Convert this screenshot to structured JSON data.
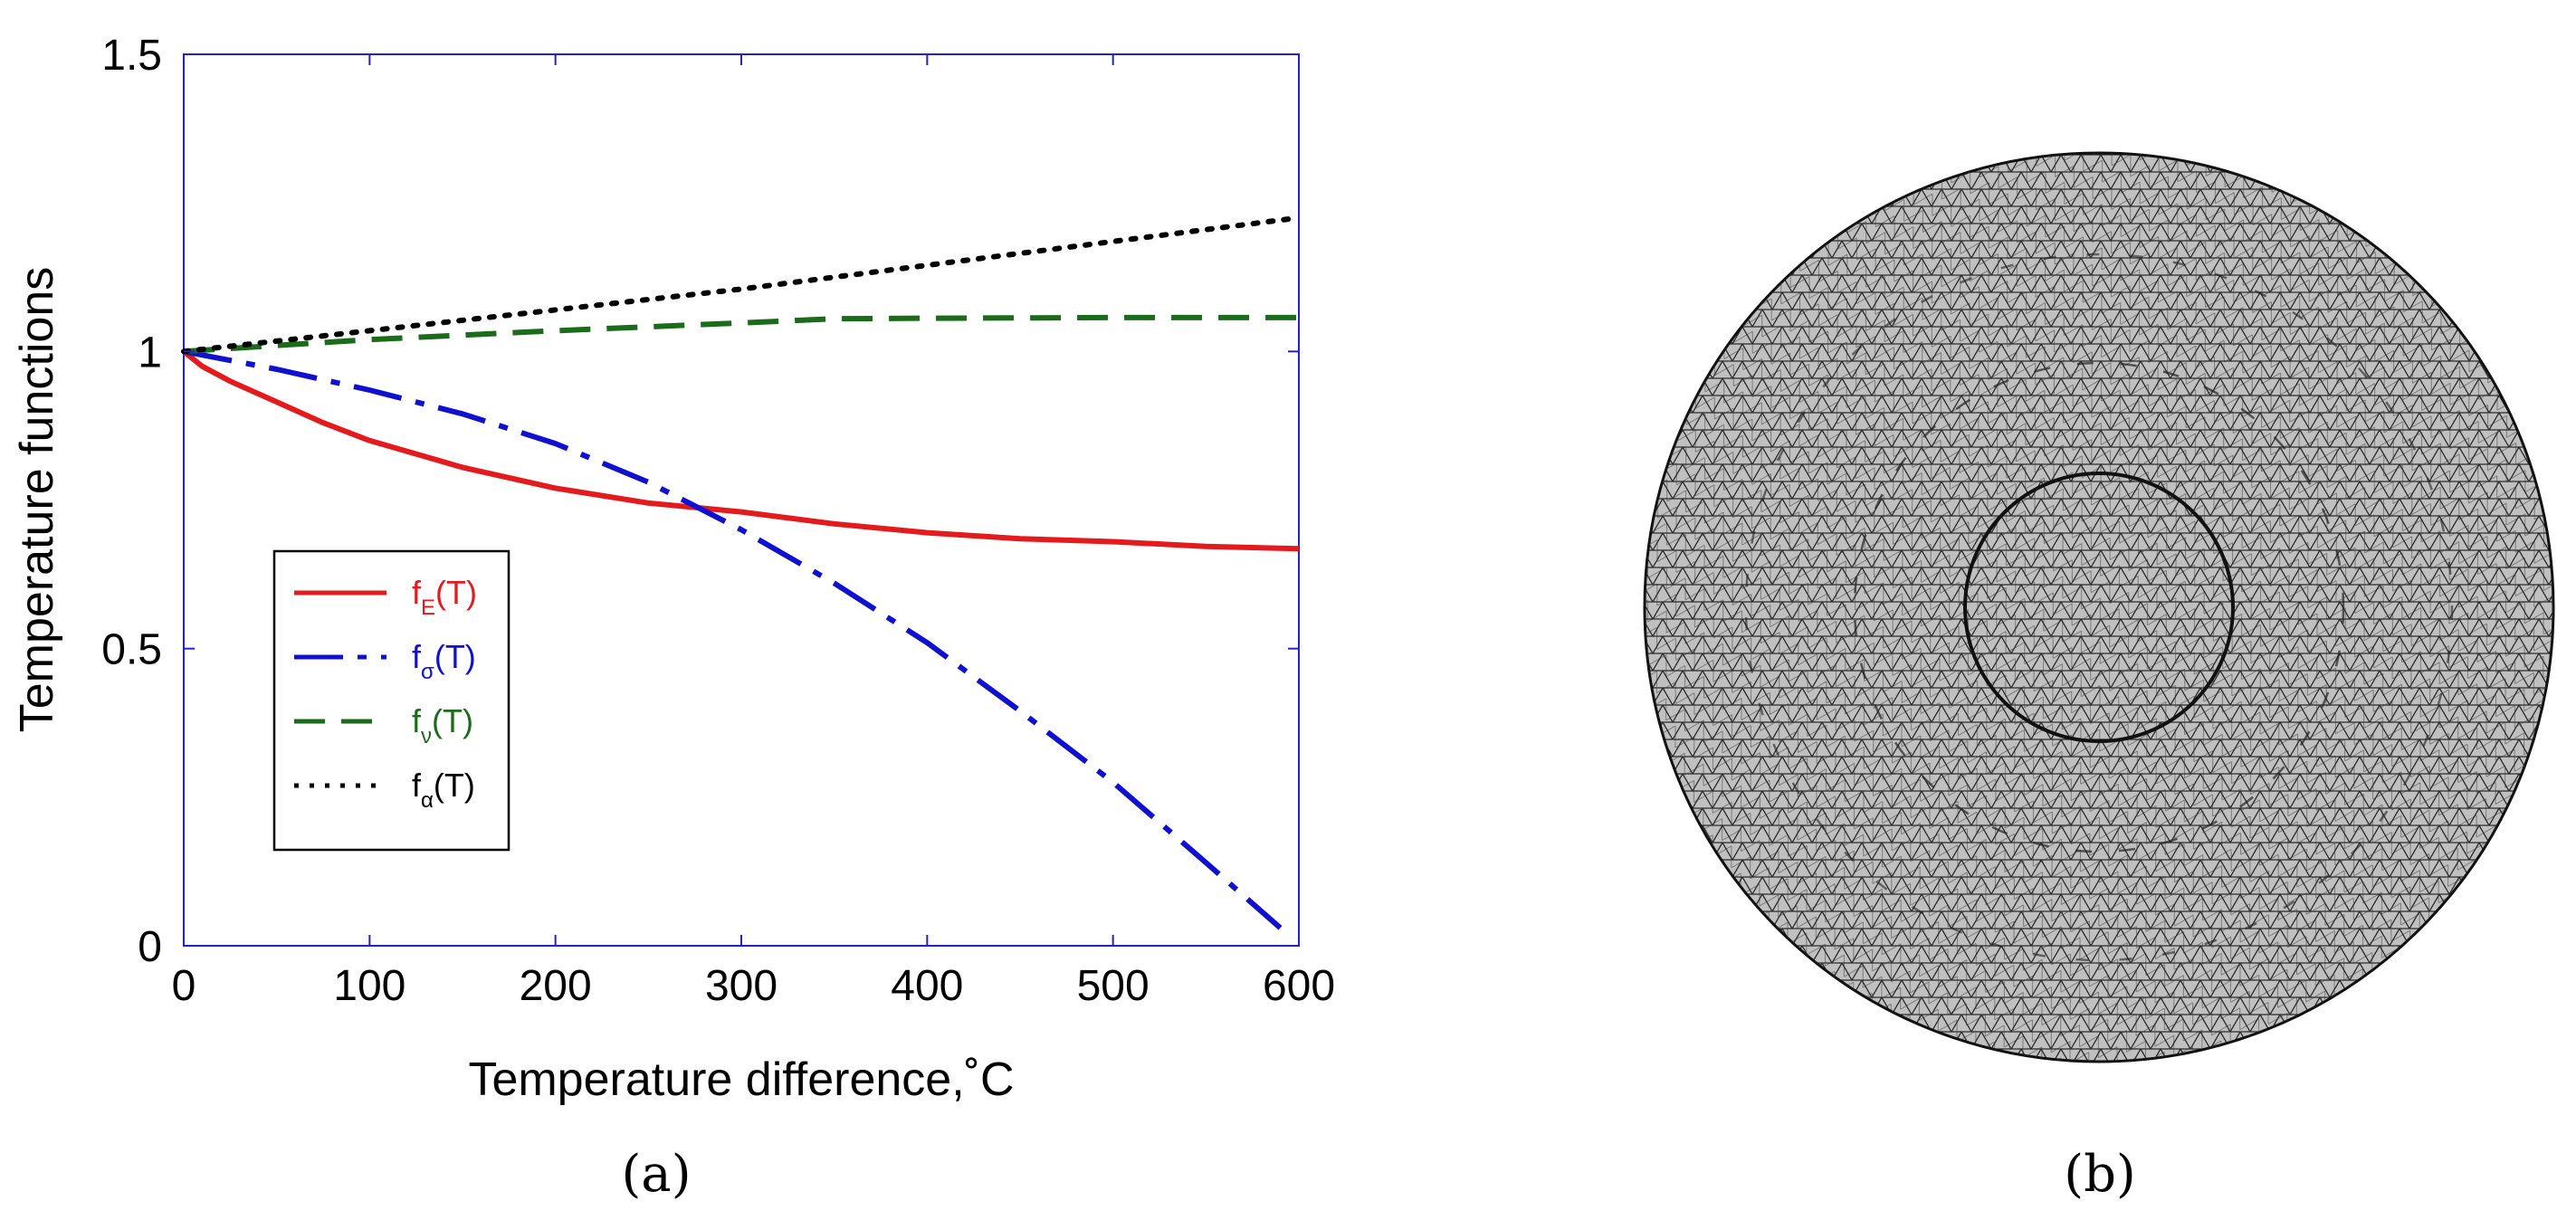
{
  "chart_data": {
    "type": "line",
    "xlabel": "Temperature difference,˚C",
    "ylabel": "Temperature functions",
    "xlim": [
      0,
      600
    ],
    "ylim": [
      0,
      1.5
    ],
    "xticks": [
      0,
      100,
      200,
      300,
      400,
      500,
      600
    ],
    "xtick_labels": [
      "0",
      "100",
      "200",
      "300",
      "400",
      "500",
      "600"
    ],
    "yticks": [
      0,
      0.5,
      1,
      1.5
    ],
    "ytick_labels": [
      "0",
      "0.5",
      "1",
      "1.5"
    ],
    "grid": false,
    "legend_position": "left",
    "series": [
      {
        "key": "fE",
        "name": "f",
        "subscript": "E",
        "suffix": "(T)",
        "color": "#e41a1c",
        "style": "solid",
        "x": [
          0,
          10,
          25,
          50,
          75,
          100,
          150,
          200,
          250,
          300,
          350,
          400,
          450,
          500,
          550,
          600
        ],
        "y": [
          1.0,
          0.975,
          0.95,
          0.915,
          0.88,
          0.85,
          0.805,
          0.77,
          0.745,
          0.73,
          0.71,
          0.695,
          0.685,
          0.68,
          0.672,
          0.668
        ]
      },
      {
        "key": "fsigma",
        "name": "f",
        "subscript": "σ",
        "suffix": "(T)",
        "color": "#1010d0",
        "style": "dashdot",
        "x": [
          0,
          50,
          100,
          150,
          200,
          250,
          300,
          350,
          400,
          450,
          500,
          550,
          590
        ],
        "y": [
          1.0,
          0.97,
          0.935,
          0.895,
          0.845,
          0.78,
          0.7,
          0.61,
          0.51,
          0.395,
          0.275,
          0.14,
          0.03
        ]
      },
      {
        "key": "fnu",
        "name": "f",
        "subscript": "ν",
        "suffix": "(T)",
        "color": "#1a6b1a",
        "style": "dashed",
        "x": [
          0,
          100,
          200,
          300,
          350,
          400,
          500,
          600
        ],
        "y": [
          1.0,
          1.02,
          1.035,
          1.048,
          1.055,
          1.056,
          1.057,
          1.057
        ]
      },
      {
        "key": "falpha",
        "name": "f",
        "subscript": "α",
        "suffix": "(T)",
        "color": "#000000",
        "style": "dotted",
        "x": [
          0,
          100,
          200,
          300,
          400,
          500,
          600
        ],
        "y": [
          1.0,
          1.035,
          1.07,
          1.105,
          1.145,
          1.185,
          1.225
        ]
      }
    ]
  },
  "captions": {
    "a": "(a)",
    "b": "(b)"
  },
  "mesh_image": {
    "description_name": "circular triangular finite element mesh",
    "fill": "#c0c0c0",
    "stroke": "#1a1a1a"
  }
}
